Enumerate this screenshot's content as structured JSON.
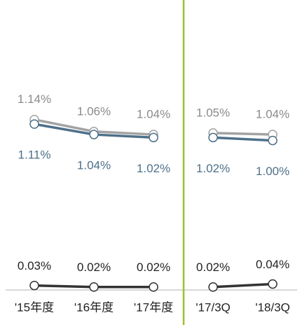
{
  "chart_data": {
    "type": "line",
    "categories": [
      "'15年度",
      "'16年度",
      "'17年度",
      "'17/3Q",
      "'18/3Q"
    ],
    "series": [
      {
        "color": "#a3a3a3",
        "values": [
          1.14,
          1.06,
          1.04,
          1.05,
          1.04
        ],
        "value_labels": [
          "1.14%",
          "1.06%",
          "1.04%",
          "1.05%",
          "1.04%"
        ]
      },
      {
        "color": "#4d7089",
        "values": [
          1.11,
          1.04,
          1.02,
          1.02,
          1.0
        ],
        "value_labels": [
          "1.11%",
          "1.04%",
          "1.02%",
          "1.02%",
          "1.00%"
        ]
      },
      {
        "color": "#333333",
        "values": [
          0.03,
          0.02,
          0.02,
          0.02,
          0.04
        ],
        "value_labels": [
          "0.03%",
          "0.02%",
          "0.02%",
          "0.02%",
          "0.04%"
        ]
      }
    ],
    "ylim": [
      0,
      1.94
    ]
  }
}
